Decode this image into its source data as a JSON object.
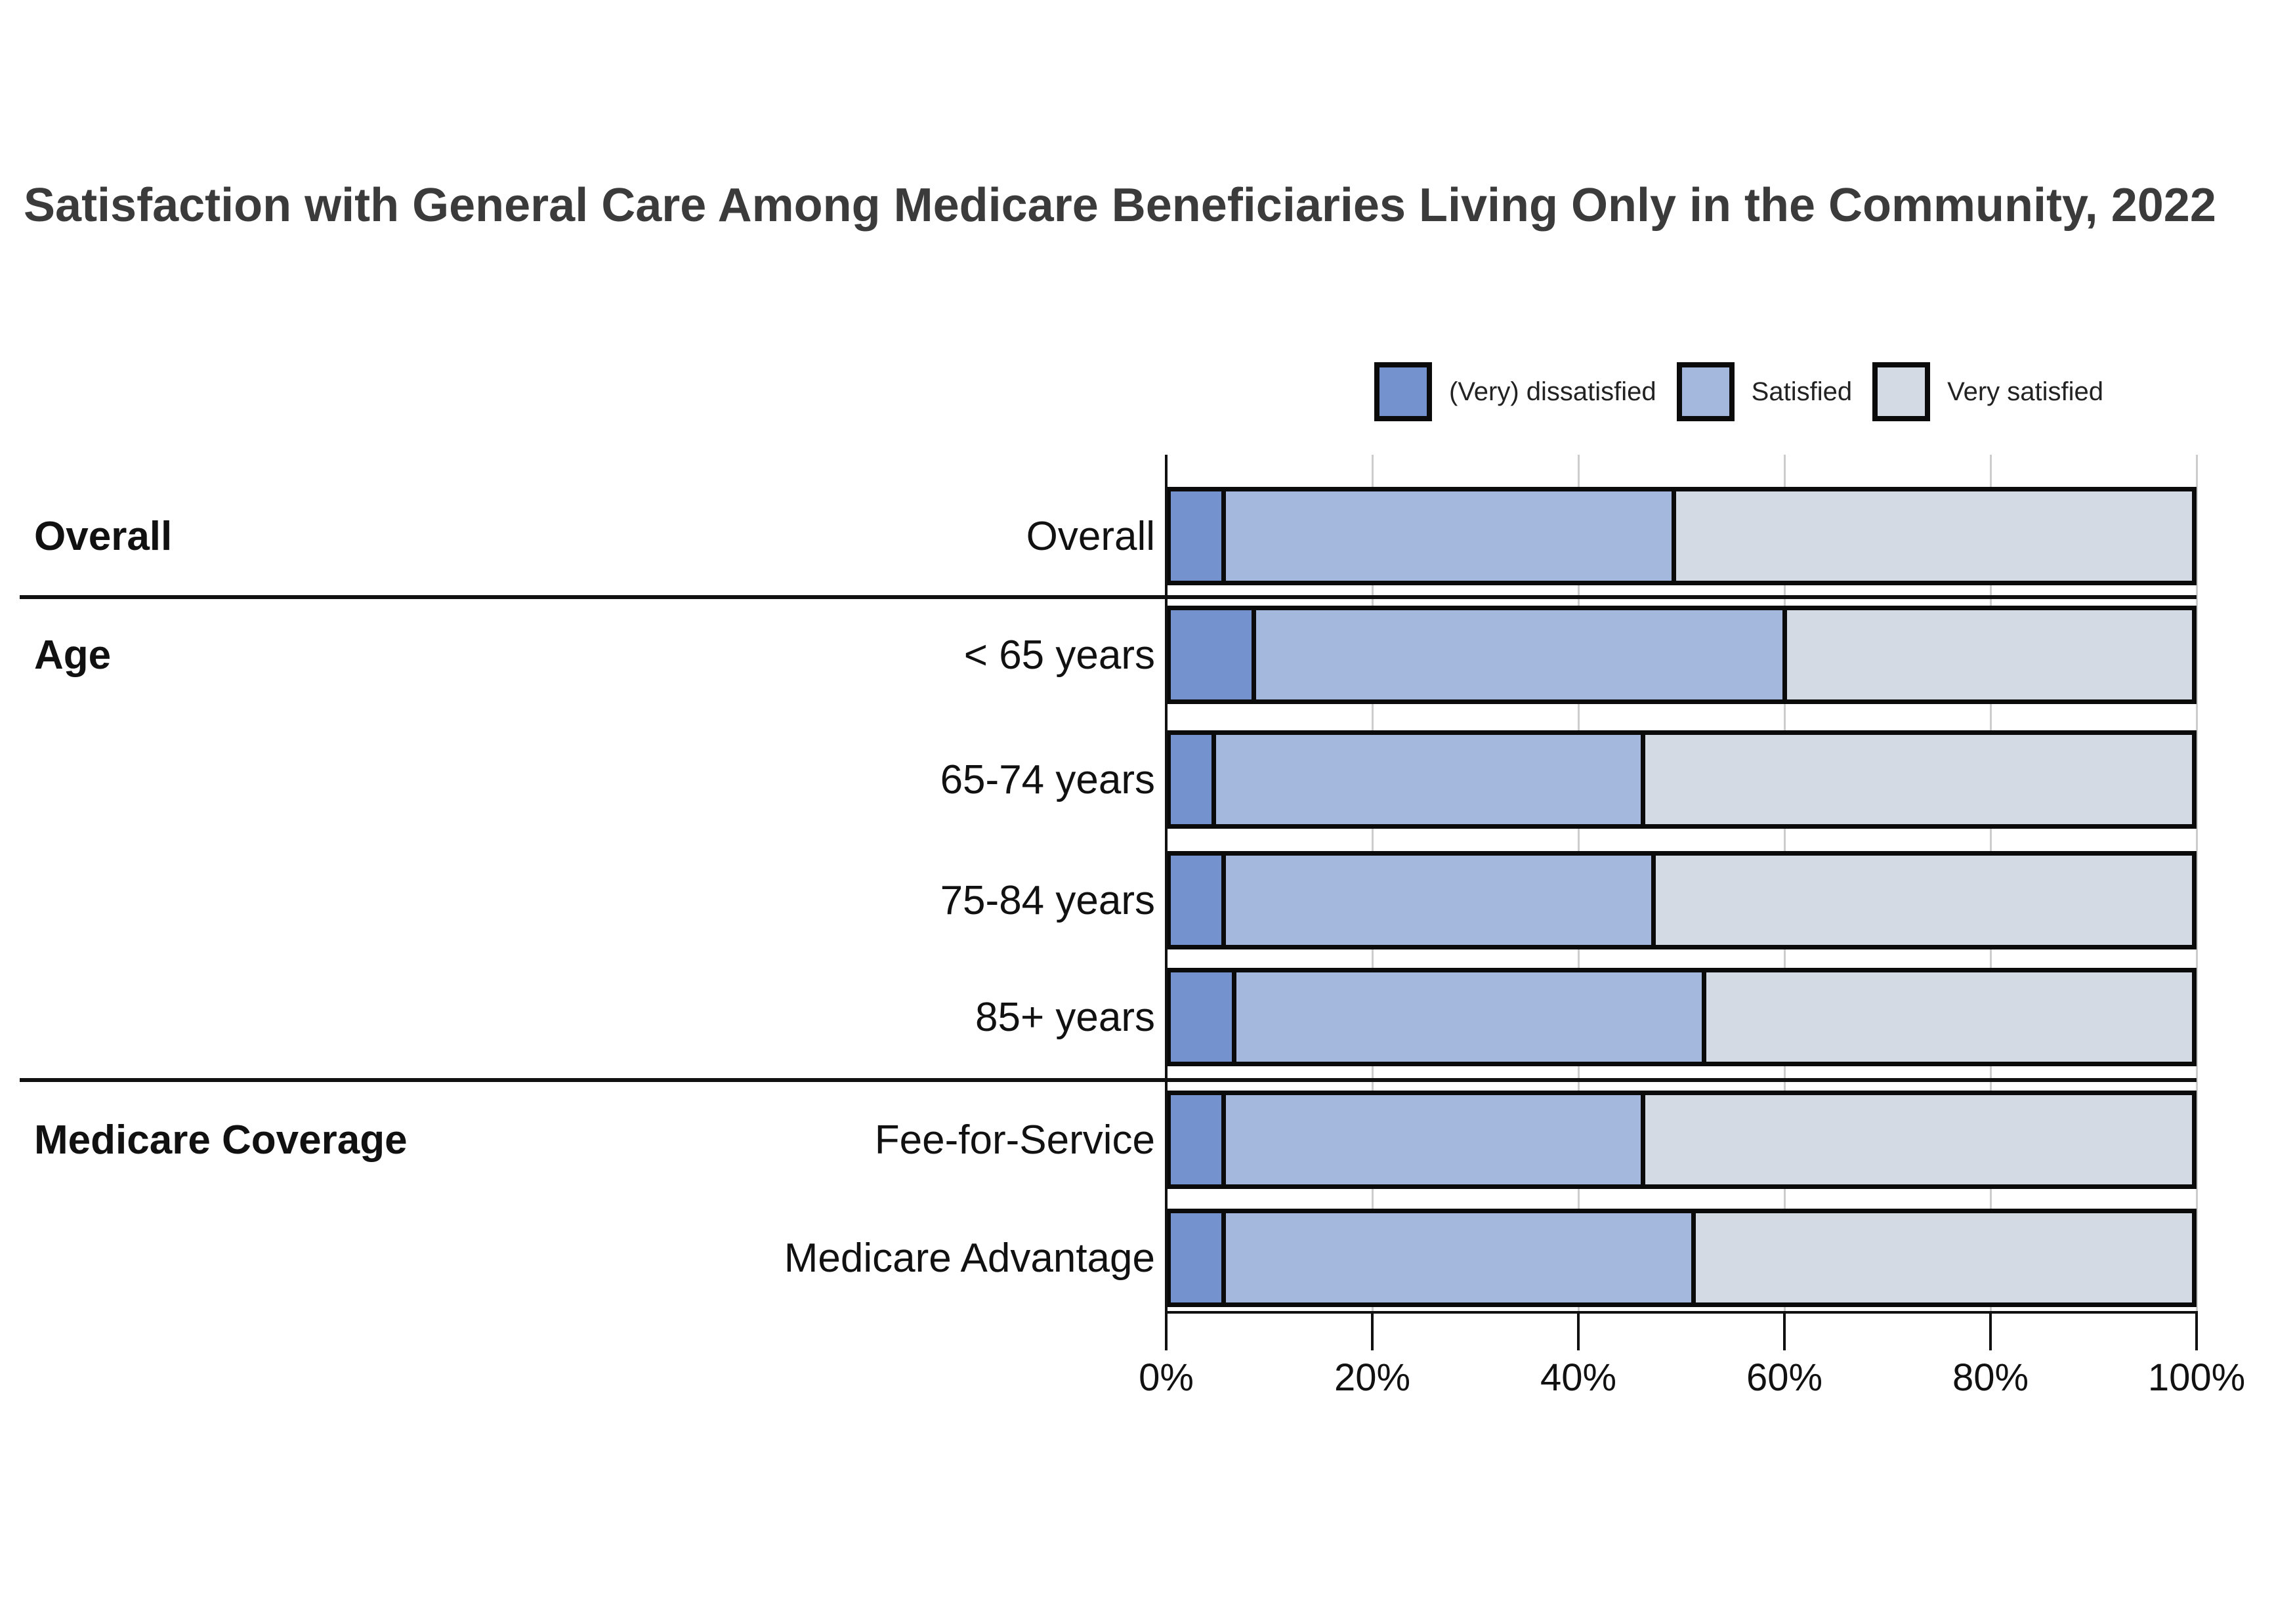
{
  "title": "Satisfaction with General Care Among Medicare Beneficiaries Living Only in the Community, 2022",
  "chart_data": {
    "type": "bar",
    "stacked": true,
    "orientation": "horizontal",
    "title": "Satisfaction with General Care Among Medicare Beneficiaries Living Only in the Community, 2022",
    "categories": [
      "Overall",
      "< 65 years",
      "65-74 years",
      "75-84 years",
      "85+ years",
      "Fee-for-Service",
      "Medicare Advantage"
    ],
    "row_groups": [
      {
        "label": "Overall",
        "first_row": 0,
        "rows": [
          0
        ]
      },
      {
        "label": "Age",
        "first_row": 1,
        "rows": [
          1,
          2,
          3,
          4
        ]
      },
      {
        "label": "Medicare Coverage",
        "first_row": 5,
        "rows": [
          5,
          6
        ]
      }
    ],
    "series": [
      {
        "name": "(Very) dissatisfied",
        "color": "#7392ce",
        "values": [
          5,
          8,
          4,
          5,
          6,
          5,
          5
        ]
      },
      {
        "name": "Satisfied",
        "color": "#a4b7dc",
        "values": [
          44,
          52,
          42,
          42,
          46,
          41,
          46
        ]
      },
      {
        "name": "Very satisfied",
        "color": "#d4dae4",
        "values": [
          51,
          40,
          54,
          53,
          48,
          54,
          49
        ]
      }
    ],
    "xlabel": "",
    "ylabel": "",
    "xlim": [
      0,
      100
    ],
    "x_ticks": [
      "0%",
      "20%",
      "40%",
      "60%",
      "80%",
      "100%"
    ],
    "grid": "vertical",
    "legend_position": "top-right",
    "bar_outline_color": "#0b0b0b",
    "gridline_color": "#cccccc"
  }
}
